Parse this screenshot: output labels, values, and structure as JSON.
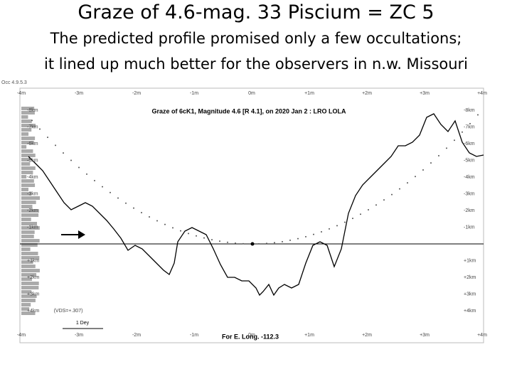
{
  "slide": {
    "title": "Graze of 4.6-mag. 33 Piscium = ZC 5",
    "subtitle_lines": [
      "The predicted profile promised only a few occultations;",
      "it lined up much better for the observers in n.w. Missouri"
    ]
  },
  "figure": {
    "corner_label": "Occ 4.9.5.3",
    "title": "Graze of  6cK1,  Magnitude 4.6 [R 4.1],  on 2020 Jan  2  :  LRO LOLA",
    "x_labels": [
      "-4m",
      "-3m",
      "-2m",
      "-1m",
      "0m",
      "+1m",
      "+2m",
      "+3m",
      "+4m"
    ],
    "right_labels": [
      "-8km",
      "-7km",
      "-6km",
      "-5km",
      "-4km",
      "-3km",
      "-2km",
      "-1km",
      "",
      "+1km",
      "+2km",
      "+3km",
      "+4km"
    ],
    "left_labels": [
      "-8km",
      "-7km",
      "-6km",
      "-5km",
      "-4km",
      "-3km",
      "-2km",
      "-1km",
      "",
      "+1km",
      "+2km",
      "+3km",
      "+4km"
    ],
    "scale_label": "1 Dey",
    "vds_label": "(VDS=+.307)",
    "footer": "For E. Long. -112.3"
  }
}
